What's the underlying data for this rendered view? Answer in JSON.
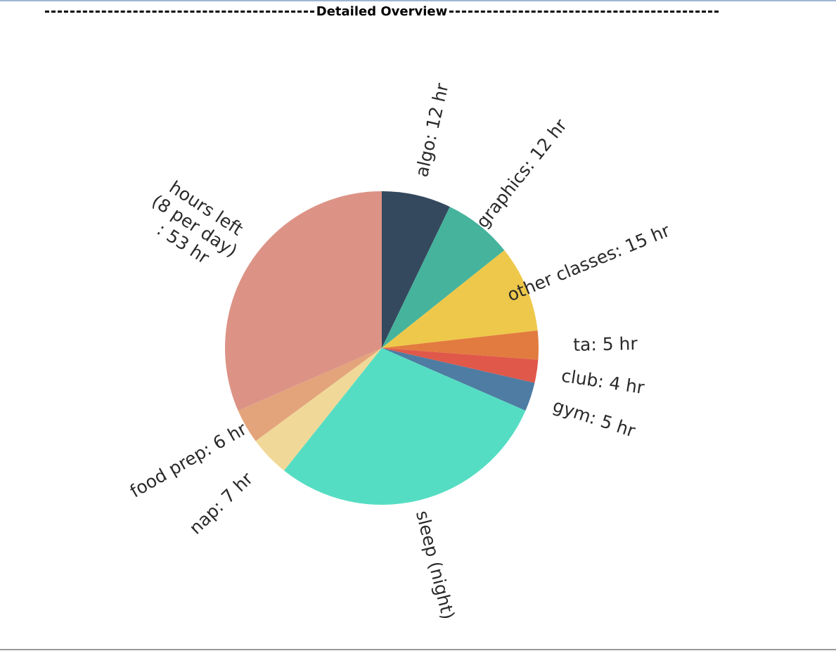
{
  "title": "Detailed Overview",
  "chart_data": {
    "type": "pie",
    "start": "top",
    "direction": "clockwise",
    "unit": "hr",
    "slices": [
      {
        "label": "algo",
        "value": 12,
        "display": "algo: 12 hr",
        "color": "#34495e"
      },
      {
        "label": "graphics",
        "value": 12,
        "display": "graphics: 12 hr",
        "color": "#46b39d"
      },
      {
        "label": "other classes",
        "value": 15,
        "display": "other classes: 15 hr",
        "color": "#eec84a"
      },
      {
        "label": "ta",
        "value": 5,
        "display": "ta: 5 hr",
        "color": "#e27b3f"
      },
      {
        "label": "club",
        "value": 4,
        "display": "club: 4 hr",
        "color": "#e0584a"
      },
      {
        "label": "gym",
        "value": 5,
        "display": "gym: 5 hr",
        "color": "#4e7ca2"
      },
      {
        "label": "sleep (night)",
        "value": 49,
        "display": "sleep (night)",
        "color": "#55ddc3"
      },
      {
        "label": "nap",
        "value": 7,
        "display": "nap: 7 hr",
        "color": "#f0d998"
      },
      {
        "label": "food prep",
        "value": 6,
        "display": "food prep: 6 hr",
        "color": "#e3a47c"
      },
      {
        "label": "hours left (8 per day)",
        "value": 53,
        "display": [
          "hours left",
          "(8 per day)",
          ": 53 hr"
        ],
        "color": "#dc9386"
      }
    ]
  }
}
